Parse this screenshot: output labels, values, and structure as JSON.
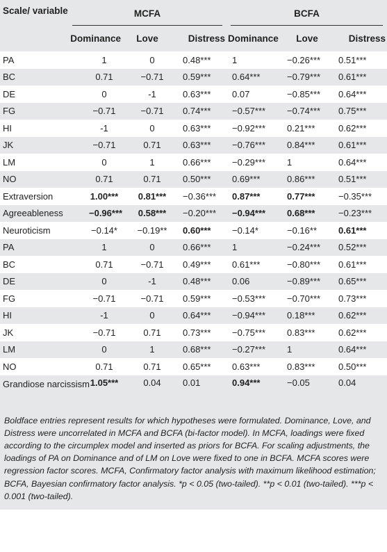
{
  "header": {
    "scale_label": "Scale/ variable",
    "groups": [
      "MCFA",
      "BCFA"
    ],
    "columns": [
      "Dominance",
      "Love",
      "Distress",
      "Dominance",
      "Love",
      "Distress"
    ]
  },
  "rows": [
    {
      "var": "PA",
      "cells": [
        "1",
        "0",
        "0.48***",
        "1",
        "−0.26***",
        "0.51***"
      ],
      "bold": [
        false,
        false,
        false,
        false,
        false,
        false
      ]
    },
    {
      "var": "BC",
      "cells": [
        "0.71",
        "−0.71",
        "0.59***",
        "0.64***",
        "−0.79***",
        "0.61***"
      ],
      "bold": [
        false,
        false,
        false,
        false,
        false,
        false
      ]
    },
    {
      "var": "DE",
      "cells": [
        "0",
        "-1",
        "0.63***",
        "0.07",
        "−0.85***",
        "0.64***"
      ],
      "bold": [
        false,
        false,
        false,
        false,
        false,
        false
      ]
    },
    {
      "var": "FG",
      "cells": [
        "−0.71",
        "−0.71",
        "0.74***",
        "−0.57***",
        "−0.74***",
        "0.75***"
      ],
      "bold": [
        false,
        false,
        false,
        false,
        false,
        false
      ]
    },
    {
      "var": "HI",
      "cells": [
        "-1",
        "0",
        "0.63***",
        "−0.92***",
        "0.21***",
        "0.62***"
      ],
      "bold": [
        false,
        false,
        false,
        false,
        false,
        false
      ]
    },
    {
      "var": "JK",
      "cells": [
        "−0.71",
        "0.71",
        "0.63***",
        "−0.76***",
        "0.84***",
        "0.61***"
      ],
      "bold": [
        false,
        false,
        false,
        false,
        false,
        false
      ]
    },
    {
      "var": "LM",
      "cells": [
        "0",
        "1",
        "0.66***",
        "−0.29***",
        "1",
        "0.64***"
      ],
      "bold": [
        false,
        false,
        false,
        false,
        false,
        false
      ]
    },
    {
      "var": "NO",
      "cells": [
        "0.71",
        "0.71",
        "0.50***",
        "0.69***",
        "0.86***",
        "0.51***"
      ],
      "bold": [
        false,
        false,
        false,
        false,
        false,
        false
      ]
    },
    {
      "var": "Extraversion",
      "cells": [
        "1.00***",
        "0.81***",
        "−0.36***",
        "0.87***",
        "0.77***",
        "−0.35***"
      ],
      "bold": [
        true,
        true,
        false,
        true,
        true,
        false
      ]
    },
    {
      "var": "Agreeableness",
      "cells": [
        "−0.96***",
        "0.58***",
        "−0.20***",
        "−0.94***",
        "0.68***",
        "−0.23***"
      ],
      "bold": [
        true,
        true,
        false,
        true,
        true,
        false
      ]
    },
    {
      "var": "Neuroticism",
      "cells": [
        "−0.14*",
        "−0.19**",
        "0.60***",
        "−0.14*",
        "−0.16**",
        "0.61***"
      ],
      "bold": [
        false,
        false,
        true,
        false,
        false,
        true
      ]
    },
    {
      "var": "PA",
      "cells": [
        "1",
        "0",
        "0.66***",
        "1",
        "−0.24***",
        "0.52***"
      ],
      "bold": [
        false,
        false,
        false,
        false,
        false,
        false
      ]
    },
    {
      "var": "BC",
      "cells": [
        "0.71",
        "−0.71",
        "0.49***",
        "0.61***",
        "−0.80***",
        "0.61***"
      ],
      "bold": [
        false,
        false,
        false,
        false,
        false,
        false
      ]
    },
    {
      "var": "DE",
      "cells": [
        "0",
        "-1",
        "0.48***",
        "0.06",
        "−0.89***",
        "0.65***"
      ],
      "bold": [
        false,
        false,
        false,
        false,
        false,
        false
      ]
    },
    {
      "var": "FG",
      "cells": [
        "−0.71",
        "−0.71",
        "0.59***",
        "−0.53***",
        "−0.70***",
        "0.73***"
      ],
      "bold": [
        false,
        false,
        false,
        false,
        false,
        false
      ]
    },
    {
      "var": "HI",
      "cells": [
        "-1",
        "0",
        "0.64***",
        "−0.94***",
        "0.18***",
        "0.62***"
      ],
      "bold": [
        false,
        false,
        false,
        false,
        false,
        false
      ]
    },
    {
      "var": "JK",
      "cells": [
        "−0.71",
        "0.71",
        "0.73***",
        "−0.75***",
        "0.83***",
        "0.62***"
      ],
      "bold": [
        false,
        false,
        false,
        false,
        false,
        false
      ]
    },
    {
      "var": "LM",
      "cells": [
        "0",
        "1",
        "0.68***",
        "−0.27***",
        "1",
        "0.64***"
      ],
      "bold": [
        false,
        false,
        false,
        false,
        false,
        false
      ]
    },
    {
      "var": "NO",
      "cells": [
        "0.71",
        "0.71",
        "0.65***",
        "0.63***",
        "0.83***",
        "0.50***"
      ],
      "bold": [
        false,
        false,
        false,
        false,
        false,
        false
      ]
    },
    {
      "var": "Grandiose narcissism",
      "cells": [
        "1.05***",
        "0.04",
        "0.01",
        "0.94***",
        "−0.05",
        "0.04"
      ],
      "bold": [
        true,
        false,
        false,
        true,
        false,
        false
      ]
    }
  ],
  "note": "Boldface entries represent results for which hypotheses were formulated. Dominance, Love, and Distress were uncorrelated in MCFA and BCFA (bi-factor model). In MCFA, loadings were fixed according to the circumplex model and inserted as priors for BCFA. For scaling adjustments, the loadings of PA on Dominance and of LM on Love were fixed to one in BCFA. MCFA scores were regression factor scores. MCFA, Confirmatory factor analysis with maximum likelihood estimation; BCFA, Bayesian confirmatory factor analysis. *p < 0.05 (two-tailed). **p < 0.01 (two-tailed). ***p < 0.001 (two-tailed)."
}
